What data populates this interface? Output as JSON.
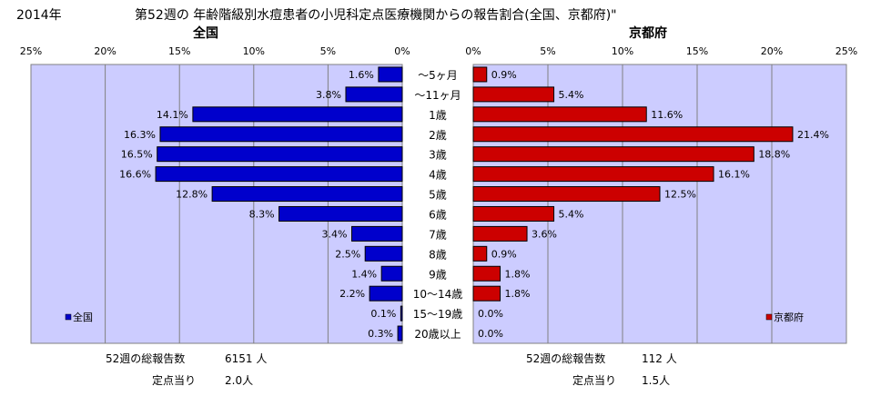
{
  "header": {
    "year": "2014年",
    "title": "第52週の 年齢階級別水痘患者の小児科定点医療機関からの報告割合(全国、京都府)\""
  },
  "chart_data": [
    {
      "type": "bar",
      "orientation": "horizontal",
      "direction": "right-to-left",
      "title": "全国",
      "categories": [
        "～5ヶ月",
        "～11ヶ月",
        "1歳",
        "2歳",
        "3歳",
        "4歳",
        "5歳",
        "6歳",
        "7歳",
        "8歳",
        "9歳",
        "10～14歳",
        "15～19歳",
        "20歳以上"
      ],
      "series": [
        {
          "name": "全国",
          "color": "#0000cc",
          "values": [
            1.6,
            3.8,
            14.1,
            16.3,
            16.5,
            16.6,
            12.8,
            8.3,
            3.4,
            2.5,
            1.4,
            2.2,
            0.1,
            0.3
          ],
          "labels": [
            "1.6%",
            "3.8%",
            "14.1%",
            "16.3%",
            "16.5%",
            "16.6%",
            "12.8%",
            "8.3%",
            "3.4%",
            "2.5%",
            "1.4%",
            "2.2%",
            "0.1%",
            "0.3%"
          ]
        }
      ],
      "xlim": [
        0,
        25
      ],
      "ticks": [
        "25%",
        "20%",
        "15%",
        "10%",
        "5%",
        "0%"
      ],
      "grid": true,
      "plot_background": "#ccccff",
      "legend": "bottom-left"
    },
    {
      "type": "bar",
      "orientation": "horizontal",
      "direction": "left-to-right",
      "title": "京都府",
      "categories": [
        "～5ヶ月",
        "～11ヶ月",
        "1歳",
        "2歳",
        "3歳",
        "4歳",
        "5歳",
        "6歳",
        "7歳",
        "8歳",
        "9歳",
        "10～14歳",
        "15～19歳",
        "20歳以上"
      ],
      "series": [
        {
          "name": "京都府",
          "color": "#cc0000",
          "values": [
            0.9,
            5.4,
            11.6,
            21.4,
            18.8,
            16.1,
            12.5,
            5.4,
            3.6,
            0.9,
            1.8,
            1.8,
            0.0,
            0.0
          ],
          "labels": [
            "0.9%",
            "5.4%",
            "11.6%",
            "21.4%",
            "18.8%",
            "16.1%",
            "12.5%",
            "5.4%",
            "3.6%",
            "0.9%",
            "1.8%",
            "1.8%",
            "0.0%",
            "0.0%"
          ]
        }
      ],
      "xlim": [
        0,
        25
      ],
      "ticks": [
        "0%",
        "5%",
        "10%",
        "15%",
        "20%",
        "25%"
      ],
      "grid": true,
      "plot_background": "#ccccff",
      "legend": "bottom-right"
    }
  ],
  "footer": {
    "national": {
      "total_label": "52週の総報告数",
      "total_value": "6151 人",
      "per_label": "定点当り",
      "per_value": "2.0人"
    },
    "kyoto": {
      "total_label": "52週の総報告数",
      "total_value": "112 人",
      "per_label": "定点当り",
      "per_value": "1.5人"
    }
  }
}
